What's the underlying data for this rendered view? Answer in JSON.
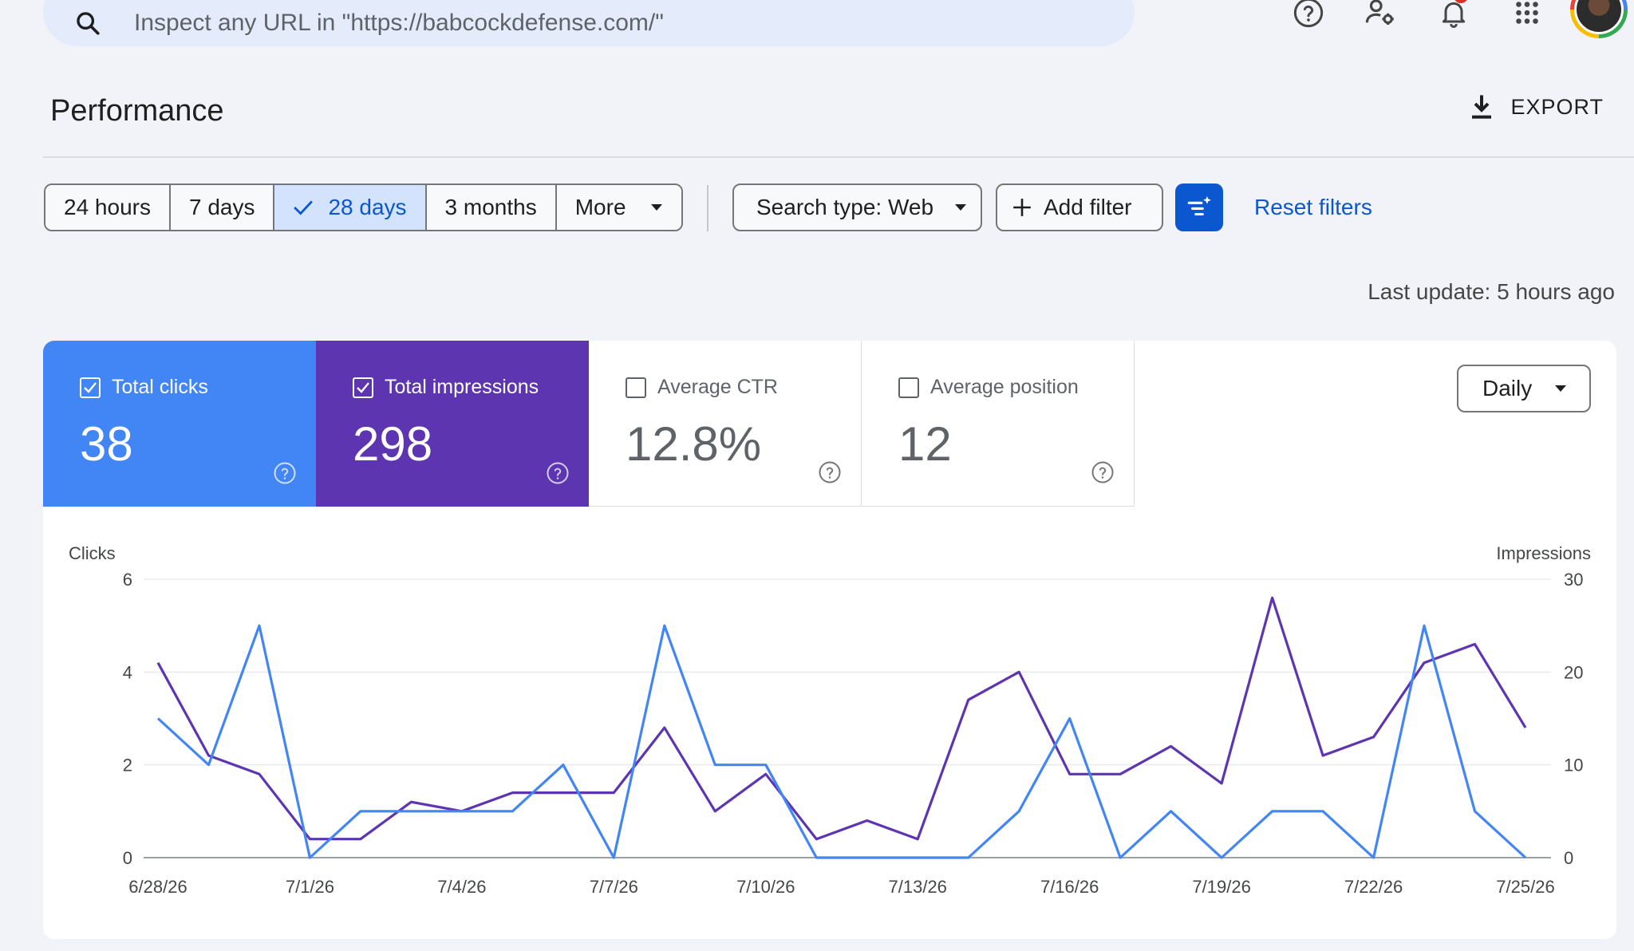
{
  "search": {
    "placeholder": "Inspect any URL in \"https://babcockdefense.com/\""
  },
  "topbar": {
    "icons": [
      "help-icon",
      "manage-users-icon",
      "notifications-icon",
      "apps-icon",
      "account-avatar"
    ]
  },
  "header": {
    "title": "Performance",
    "export_label": "EXPORT"
  },
  "filters": {
    "date_ranges": [
      "24 hours",
      "7 days",
      "28 days",
      "3 months",
      "More"
    ],
    "selected_range": "28 days",
    "search_type": "Search type: Web",
    "add_filter": "Add filter",
    "reset": "Reset filters"
  },
  "last_update": "Last update: 5 hours ago",
  "metrics": {
    "clicks": {
      "label": "Total clicks",
      "value": "38",
      "checked": true,
      "color": "#4285f4"
    },
    "impressions": {
      "label": "Total impressions",
      "value": "298",
      "checked": true,
      "color": "#5e35b1"
    },
    "ctr": {
      "label": "Average CTR",
      "value": "12.8%",
      "checked": false
    },
    "position": {
      "label": "Average position",
      "value": "12",
      "checked": false
    }
  },
  "granularity": "Daily",
  "chart_data": {
    "type": "line",
    "ylabel_left": "Clicks",
    "ylabel_right": "Impressions",
    "ylim_left": [
      0,
      6
    ],
    "ylim_right": [
      0,
      30
    ],
    "yticks_left": [
      "0",
      "2",
      "4",
      "6"
    ],
    "yticks_right": [
      "0",
      "10",
      "20",
      "30"
    ],
    "x_tick_labels": [
      "6/28/26",
      "7/1/26",
      "7/4/26",
      "7/7/26",
      "7/10/26",
      "7/13/26",
      "7/16/26",
      "7/19/26",
      "7/22/26",
      "7/25/26"
    ],
    "x": [
      "6/28/26",
      "6/29/26",
      "6/30/26",
      "7/1/26",
      "7/2/26",
      "7/3/26",
      "7/4/26",
      "7/5/26",
      "7/6/26",
      "7/7/26",
      "7/8/26",
      "7/9/26",
      "7/10/26",
      "7/11/26",
      "7/12/26",
      "7/13/26",
      "7/14/26",
      "7/15/26",
      "7/16/26",
      "7/17/26",
      "7/18/26",
      "7/19/26",
      "7/20/26",
      "7/21/26",
      "7/22/26",
      "7/23/26",
      "7/24/26",
      "7/25/26"
    ],
    "series": [
      {
        "name": "Clicks",
        "axis": "left",
        "color": "#4285f4",
        "values": [
          3,
          2,
          5,
          0,
          1,
          1,
          1,
          1,
          2,
          0,
          5,
          2,
          2,
          0,
          0,
          0,
          0,
          1,
          3,
          0,
          1,
          0,
          1,
          1,
          0,
          5,
          1,
          0
        ]
      },
      {
        "name": "Impressions",
        "axis": "right",
        "color": "#5e35b1",
        "values": [
          21,
          11,
          9,
          2,
          2,
          6,
          5,
          7,
          7,
          7,
          14,
          5,
          9,
          2,
          4,
          2,
          17,
          20,
          9,
          9,
          12,
          8,
          28,
          11,
          13,
          21,
          23,
          14
        ]
      }
    ],
    "grid": true,
    "legend": "none"
  }
}
